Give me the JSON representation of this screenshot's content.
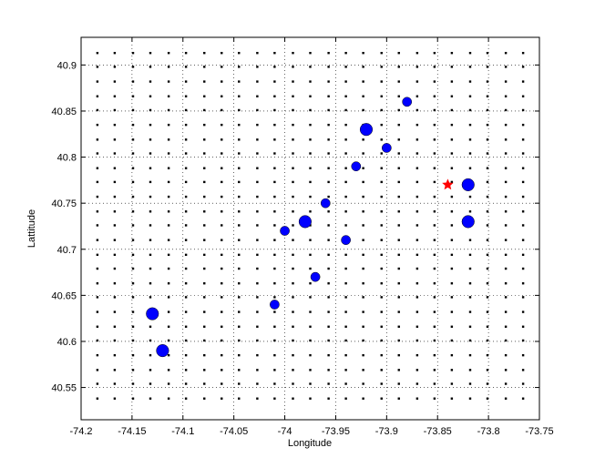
{
  "chart_data": {
    "type": "scatter",
    "xlabel": "Longitude",
    "ylabel": "Lattitude",
    "xlim": [
      -74.2,
      -73.75
    ],
    "ylim": [
      40.515,
      40.93
    ],
    "xticks": [
      -74.2,
      -74.15,
      -74.1,
      -74.05,
      -74,
      -73.95,
      -73.9,
      -73.85,
      -73.8,
      -73.75
    ],
    "yticks": [
      40.55,
      40.6,
      40.65,
      40.7,
      40.75,
      40.8,
      40.85,
      40.9
    ],
    "grid": true,
    "grid_points": {
      "color": "#000000",
      "x": [
        -74.184,
        -74.167,
        -74.149,
        -74.132,
        -74.114,
        -74.097,
        -74.079,
        -74.062,
        -74.045,
        -74.027,
        -74.01,
        -73.992,
        -73.975,
        -73.957,
        -73.94,
        -73.923,
        -73.905,
        -73.888,
        -73.87,
        -73.853,
        -73.836,
        -73.818,
        -73.801,
        -73.783,
        -73.766
      ],
      "y": [
        40.538,
        40.554,
        40.569,
        40.585,
        40.601,
        40.616,
        40.632,
        40.648,
        40.663,
        40.679,
        40.694,
        40.71,
        40.726,
        40.741,
        40.757,
        40.773,
        40.788,
        40.804,
        40.819,
        40.835,
        40.851,
        40.866,
        40.882,
        40.898,
        40.913
      ]
    },
    "series": [
      {
        "color": "#0000ff",
        "marker": "circle",
        "x": [
          -73.88,
          -73.92,
          -73.9,
          -73.93,
          -73.82,
          -73.96,
          -73.98,
          -73.82,
          -74.0,
          -73.94,
          -73.97,
          -74.01,
          -74.13,
          -74.12
        ],
        "y": [
          40.86,
          40.83,
          40.81,
          40.79,
          40.77,
          40.75,
          40.73,
          40.73,
          40.72,
          40.71,
          40.67,
          40.64,
          40.63,
          40.59
        ],
        "sizes": [
          36,
          64,
          36,
          36,
          64,
          36,
          64,
          64,
          36,
          36,
          36,
          36,
          64,
          64
        ]
      },
      {
        "color": "#ff0000",
        "marker": "star",
        "x": [
          -73.84
        ],
        "y": [
          40.77
        ]
      }
    ]
  }
}
